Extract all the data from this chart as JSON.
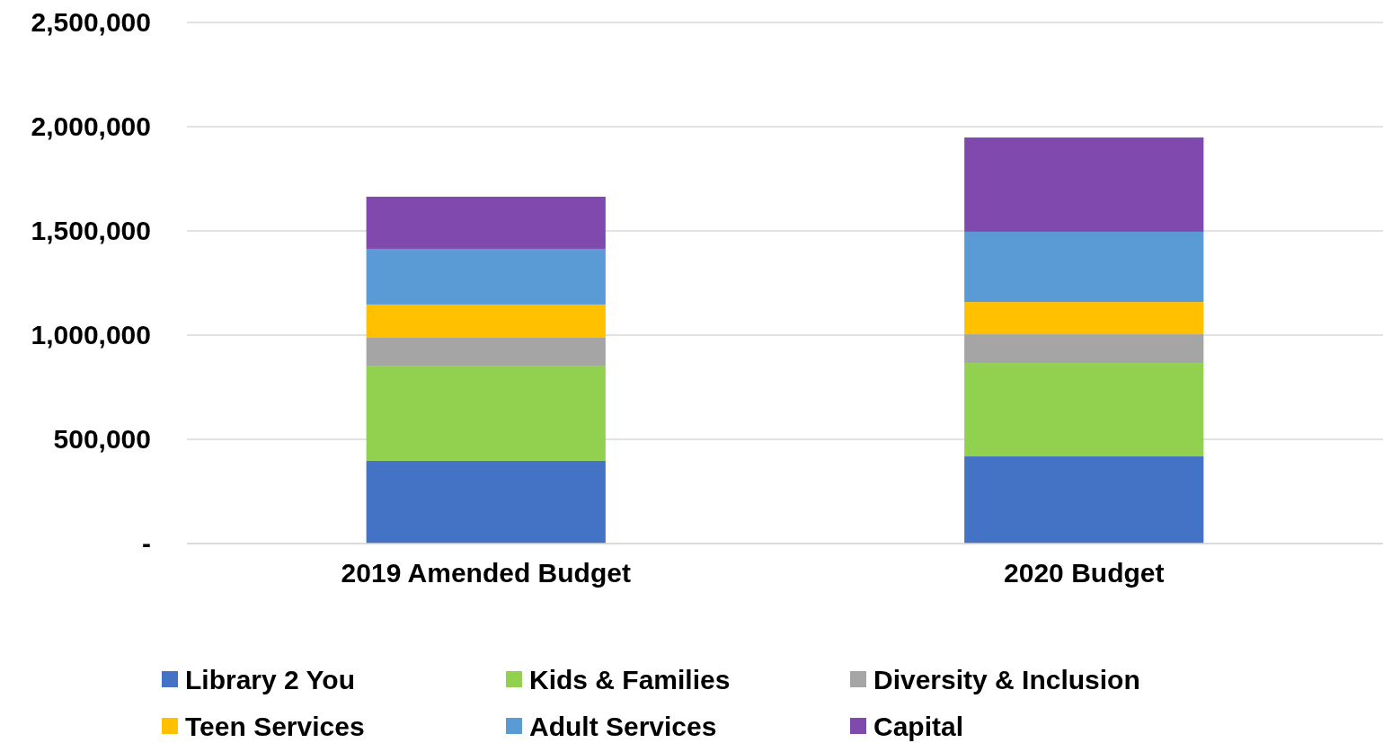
{
  "chart_data": {
    "type": "bar",
    "stacked": true,
    "categories": [
      "2019 Amended Budget",
      "2020 Budget"
    ],
    "series": [
      {
        "name": "Library 2 You",
        "color": "#4472c4",
        "values": [
          397000,
          418000
        ]
      },
      {
        "name": "Kids & Families",
        "color": "#92d050",
        "values": [
          456000,
          448000
        ]
      },
      {
        "name": "Diversity & Inclusion",
        "color": "#a5a5a5",
        "values": [
          134000,
          138000
        ]
      },
      {
        "name": "Teen Services",
        "color": "#ffc000",
        "values": [
          160000,
          155000
        ]
      },
      {
        "name": "Adult Services",
        "color": "#5b9bd5",
        "values": [
          267000,
          337000
        ]
      },
      {
        "name": "Capital",
        "color": "#8049ae",
        "values": [
          250000,
          452000
        ]
      }
    ],
    "ylim": [
      0,
      2500000
    ],
    "yticks": [
      {
        "value": 0,
        "label": "-"
      },
      {
        "value": 500000,
        "label": "500,000"
      },
      {
        "value": 1000000,
        "label": "1,000,000"
      },
      {
        "value": 1500000,
        "label": "1,500,000"
      },
      {
        "value": 2000000,
        "label": "2,000,000"
      },
      {
        "value": 2500000,
        "label": "2,500,000"
      }
    ],
    "grid": "y",
    "legend": "bottom"
  }
}
